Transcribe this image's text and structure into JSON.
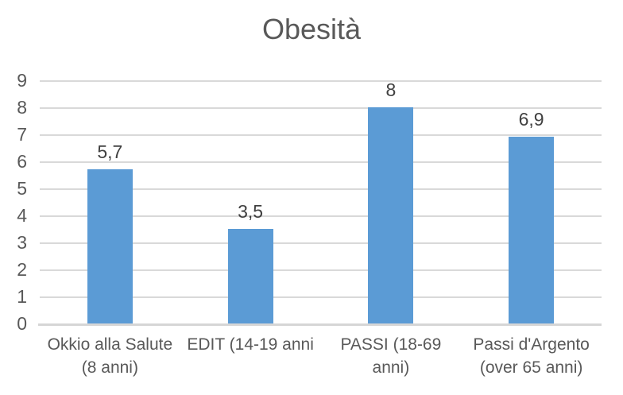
{
  "chart_data": {
    "type": "bar",
    "title": "Obesità",
    "categories": [
      "Okkio alla Salute (8 anni)",
      "EDIT (14-19 anni",
      "PASSI (18-69 anni)",
      "Passi d'Argento (over 65 anni)"
    ],
    "category_display_lines": [
      [
        "Okkio alla Salute",
        "(8 anni)"
      ],
      [
        "EDIT (14-19 anni"
      ],
      [
        "PASSI (18-69",
        "anni)"
      ],
      [
        "Passi d'Argento",
        "(over 65 anni)"
      ]
    ],
    "values": [
      5.7,
      3.5,
      8,
      6.9
    ],
    "value_labels": [
      "5,7",
      "3,5",
      "8",
      "6,9"
    ],
    "xlabel": "",
    "ylabel": "",
    "ylim": [
      0,
      9
    ],
    "ytick_labels": [
      "0",
      "1",
      "2",
      "3",
      "4",
      "5",
      "6",
      "7",
      "8",
      "9"
    ],
    "grid": true,
    "legend": "none",
    "colors": {
      "bar": "#5B9BD5",
      "gridline": "#D9D9D9",
      "axis_line": "#D6D6D6",
      "title_text": "#595959",
      "axis_text": "#595959",
      "data_label_text": "#404040",
      "background": "#FFFFFF"
    }
  }
}
